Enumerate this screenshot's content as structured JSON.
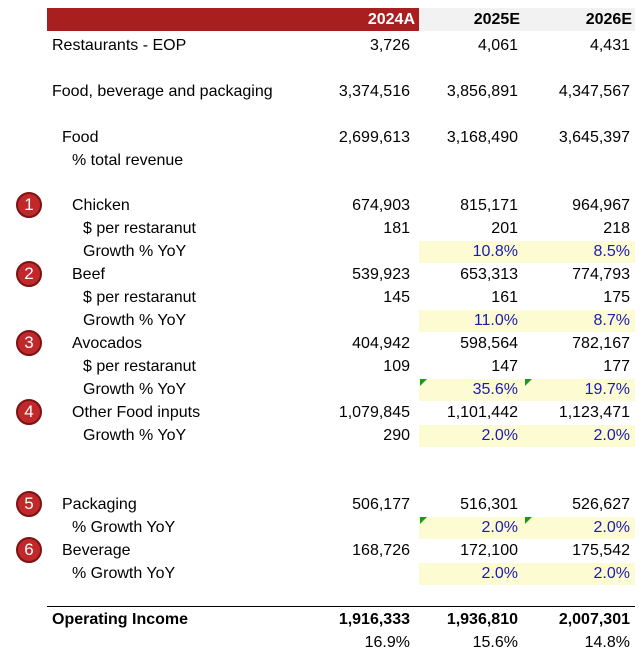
{
  "header": {
    "columns": [
      "2024A",
      "2025E",
      "2026E"
    ]
  },
  "rows": [
    {
      "label": "Restaurants - EOP",
      "values": [
        "3,726",
        "4,061",
        "4,431"
      ]
    },
    {
      "label": "Food, beverage and packaging",
      "values": [
        "3,374,516",
        "3,856,891",
        "4,347,567"
      ]
    },
    {
      "label": "Food",
      "values": [
        "2,699,613",
        "3,168,490",
        "3,645,397"
      ]
    },
    {
      "label": "% total revenue",
      "values": [
        null,
        null,
        null
      ]
    },
    {
      "label": "Chicken",
      "marker": "1",
      "values": [
        "674,903",
        "815,171",
        "964,967"
      ]
    },
    {
      "label": "$ per restaranut",
      "values": [
        "181",
        "201",
        "218"
      ]
    },
    {
      "label": "Growth % YoY",
      "values": [
        null,
        "10.8%",
        "8.5%"
      ]
    },
    {
      "label": "Beef",
      "marker": "2",
      "values": [
        "539,923",
        "653,313",
        "774,793"
      ]
    },
    {
      "label": "$ per restaranut",
      "values": [
        "145",
        "161",
        "175"
      ]
    },
    {
      "label": "Growth % YoY",
      "values": [
        null,
        "11.0%",
        "8.7%"
      ]
    },
    {
      "label": "Avocados",
      "marker": "3",
      "values": [
        "404,942",
        "598,564",
        "782,167"
      ]
    },
    {
      "label": "$ per restaranut",
      "values": [
        "109",
        "147",
        "177"
      ]
    },
    {
      "label": "Growth % YoY",
      "values": [
        null,
        "35.6%",
        "19.7%"
      ]
    },
    {
      "label": "Other Food inputs",
      "marker": "4",
      "values": [
        "1,079,845",
        "1,101,442",
        "1,123,471"
      ]
    },
    {
      "label": "Growth % YoY",
      "values": [
        "290",
        "2.0%",
        "2.0%"
      ]
    },
    {
      "label": "Packaging",
      "marker": "5",
      "values": [
        "506,177",
        "516,301",
        "526,627"
      ]
    },
    {
      "label": "% Growth YoY",
      "values": [
        null,
        "2.0%",
        "2.0%"
      ]
    },
    {
      "label": "Beverage",
      "marker": "6",
      "values": [
        "168,726",
        "172,100",
        "175,542"
      ]
    },
    {
      "label": "% Growth YoY",
      "values": [
        null,
        "2.0%",
        "2.0%"
      ]
    },
    {
      "label": "Operating Income",
      "values": [
        "1,916,333",
        "1,936,810",
        "2,007,301"
      ]
    },
    {
      "values": [
        "16.9%",
        "15.6%",
        "14.8%"
      ]
    }
  ]
}
